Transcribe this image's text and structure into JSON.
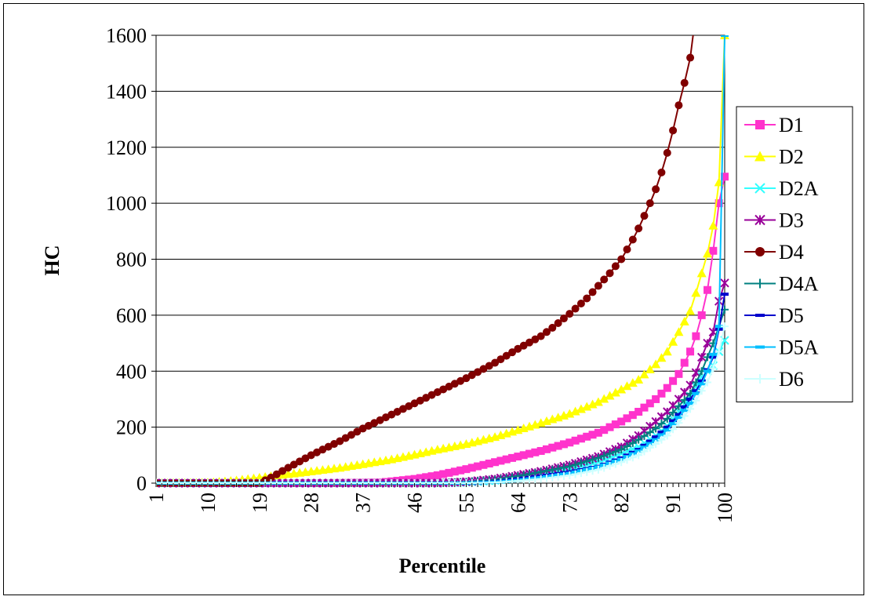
{
  "chart_data": {
    "type": "line",
    "title": "",
    "xlabel": "Percentile",
    "ylabel": "HC",
    "x_range": [
      1,
      100
    ],
    "x_tick_labels": [
      "1",
      "10",
      "19",
      "28",
      "37",
      "46",
      "55",
      "64",
      "73",
      "82",
      "91",
      "100"
    ],
    "y_tick_labels": [
      "0",
      "200",
      "400",
      "600",
      "800",
      "1000",
      "1200",
      "1400",
      "1600"
    ],
    "ylim": [
      0,
      1600
    ],
    "grid": "horizontal",
    "legend_position": "right",
    "series": [
      {
        "name": "D1",
        "color": "#FF33CC",
        "marker": "square",
        "x": [
          1,
          30,
          40,
          46,
          50,
          55,
          60,
          64,
          68,
          73,
          78,
          82,
          85,
          88,
          90,
          92,
          94,
          95,
          96,
          97,
          98,
          99,
          100
        ],
        "y": [
          0,
          0,
          2,
          15,
          28,
          50,
          75,
          95,
          115,
          145,
          180,
          220,
          255,
          300,
          340,
          390,
          470,
          525,
          600,
          690,
          830,
          1000,
          1095
        ]
      },
      {
        "name": "D2",
        "color": "#FFFF00",
        "marker": "triangle",
        "x": [
          1,
          10,
          15,
          19,
          23,
          28,
          33,
          37,
          42,
          46,
          50,
          55,
          60,
          64,
          68,
          73,
          78,
          82,
          85,
          88,
          90,
          92,
          94,
          95,
          96,
          97,
          98,
          99,
          100
        ],
        "y": [
          0,
          2,
          10,
          20,
          30,
          42,
          55,
          68,
          85,
          102,
          120,
          140,
          165,
          190,
          215,
          248,
          290,
          335,
          370,
          425,
          470,
          540,
          615,
          680,
          750,
          820,
          920,
          1075,
          1600
        ]
      },
      {
        "name": "D2A",
        "color": "#33FFFF",
        "marker": "x",
        "x": [
          1,
          50,
          55,
          60,
          64,
          68,
          73,
          78,
          82,
          85,
          88,
          90,
          92,
          94,
          95,
          96,
          97,
          98,
          99,
          100
        ],
        "y": [
          0,
          0,
          3,
          10,
          20,
          32,
          50,
          75,
          105,
          130,
          170,
          205,
          255,
          310,
          345,
          380,
          400,
          420,
          470,
          510
        ]
      },
      {
        "name": "D3",
        "color": "#990099",
        "marker": "star",
        "x": [
          1,
          50,
          55,
          60,
          64,
          68,
          73,
          78,
          82,
          85,
          88,
          90,
          92,
          94,
          95,
          96,
          97,
          98,
          99,
          100
        ],
        "y": [
          0,
          0,
          5,
          15,
          28,
          42,
          65,
          95,
          130,
          170,
          220,
          255,
          300,
          350,
          395,
          450,
          500,
          540,
          650,
          715
        ]
      },
      {
        "name": "D4",
        "color": "#800000",
        "marker": "circle",
        "x": [
          1,
          15,
          19,
          21,
          24,
          28,
          33,
          37,
          42,
          46,
          50,
          55,
          60,
          64,
          68,
          70,
          73,
          76,
          78,
          80,
          82,
          84,
          85,
          86,
          87,
          88,
          89,
          90,
          91,
          92,
          93,
          94,
          94.5
        ],
        "y": [
          0,
          0,
          0,
          20,
          55,
          100,
          150,
          195,
          245,
          285,
          325,
          375,
          430,
          480,
          525,
          555,
          605,
          660,
          705,
          750,
          800,
          870,
          910,
          955,
          1000,
          1050,
          1110,
          1180,
          1260,
          1350,
          1430,
          1520,
          1600
        ]
      },
      {
        "name": "D4A",
        "color": "#008080",
        "marker": "plus",
        "x": [
          1,
          50,
          55,
          60,
          64,
          68,
          73,
          78,
          82,
          85,
          88,
          90,
          92,
          94,
          95,
          96,
          97,
          98,
          99,
          100
        ],
        "y": [
          0,
          0,
          4,
          12,
          25,
          40,
          60,
          90,
          120,
          155,
          195,
          230,
          275,
          320,
          360,
          400,
          450,
          500,
          560,
          620
        ]
      },
      {
        "name": "D5",
        "color": "#0000CC",
        "marker": "dash",
        "x": [
          1,
          55,
          60,
          64,
          68,
          73,
          78,
          82,
          85,
          88,
          90,
          92,
          94,
          95,
          96,
          97,
          98,
          99,
          100
        ],
        "y": [
          0,
          0,
          5,
          15,
          25,
          40,
          60,
          90,
          120,
          165,
          200,
          245,
          300,
          330,
          365,
          405,
          450,
          550,
          675
        ]
      },
      {
        "name": "D5A",
        "color": "#00BFFF",
        "marker": "dash",
        "x": [
          1,
          55,
          60,
          64,
          68,
          73,
          78,
          82,
          85,
          88,
          90,
          92,
          94,
          95,
          96,
          97,
          98,
          99,
          100
        ],
        "y": [
          0,
          0,
          3,
          10,
          20,
          35,
          58,
          85,
          115,
          155,
          190,
          235,
          285,
          320,
          355,
          400,
          460,
          560,
          1600
        ]
      },
      {
        "name": "D6",
        "color": "#CCFFFF",
        "marker": "plus",
        "x": [
          1,
          55,
          60,
          64,
          68,
          73,
          78,
          82,
          85,
          88,
          90,
          92,
          94,
          95,
          96,
          97,
          98,
          99,
          100
        ],
        "y": [
          0,
          0,
          2,
          8,
          15,
          28,
          48,
          75,
          100,
          140,
          170,
          215,
          265,
          295,
          330,
          360,
          410,
          470,
          560
        ]
      }
    ]
  }
}
